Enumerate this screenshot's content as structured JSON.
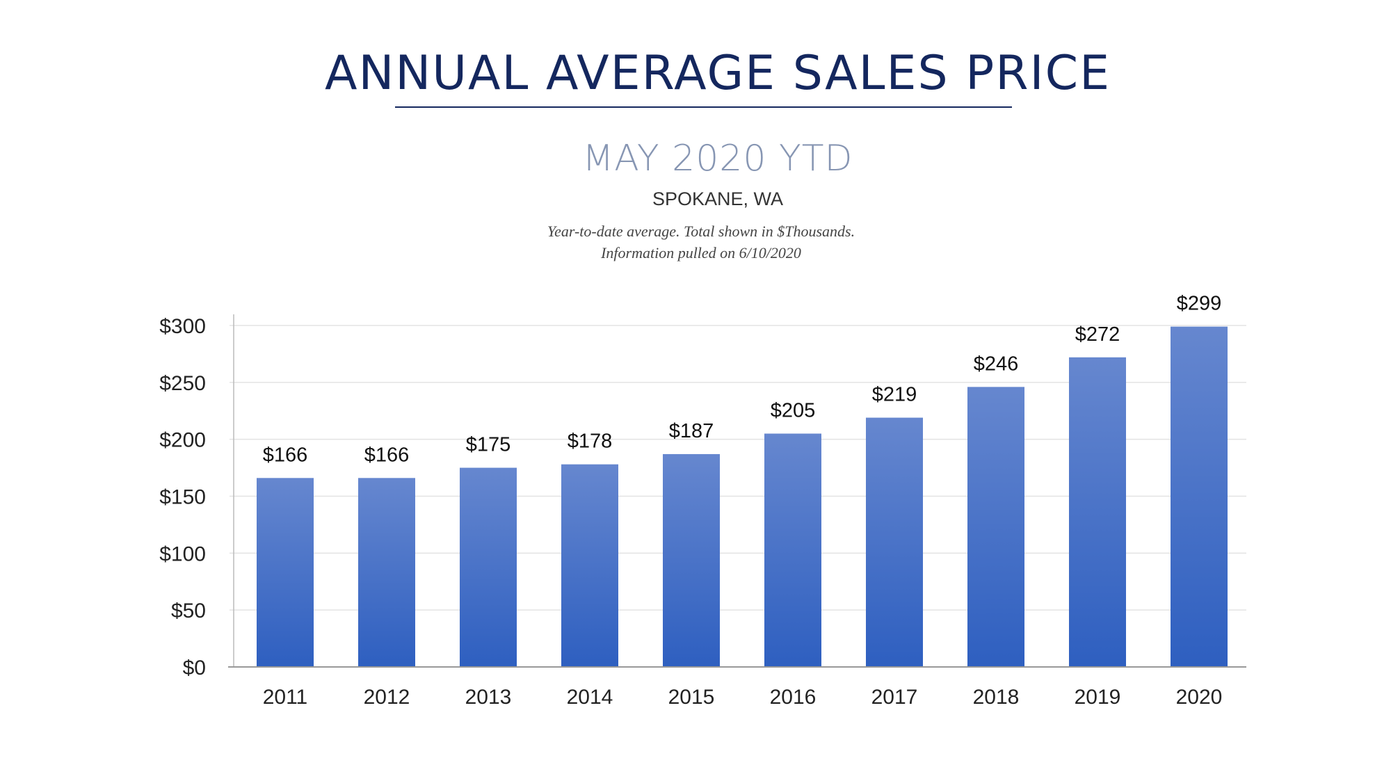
{
  "title": "ANNUAL AVERAGE SALES PRICE",
  "subtitle": "MAY 2020 YTD",
  "location": "SPOKANE, WA",
  "note_line1": "Year-to-date average.  Total shown in $Thousands.",
  "note_line2": "Information pulled on 6/10/2020",
  "colors": {
    "title": "#14275e",
    "bar_top": "#6687cf",
    "bar_bottom": "#2e5fc0",
    "grid": "#e3e3e3"
  },
  "chart_data": {
    "type": "bar",
    "title": "ANNUAL AVERAGE SALES PRICE",
    "categories": [
      "2011",
      "2012",
      "2013",
      "2014",
      "2015",
      "2016",
      "2017",
      "2018",
      "2019",
      "2020"
    ],
    "values": [
      166,
      166,
      175,
      178,
      187,
      205,
      219,
      246,
      272,
      299
    ],
    "data_labels": [
      "$166",
      "$166",
      "$175",
      "$178",
      "$187",
      "$205",
      "$219",
      "$246",
      "$272",
      "$299"
    ],
    "yticks": [
      0,
      50,
      100,
      150,
      200,
      250,
      300
    ],
    "ytick_labels": [
      "$0",
      "$50",
      "$100",
      "$150",
      "$200",
      "$250",
      "$300"
    ],
    "ylim": [
      0,
      300
    ],
    "xlabel": "",
    "ylabel": "",
    "grid": true,
    "legend": "none"
  }
}
